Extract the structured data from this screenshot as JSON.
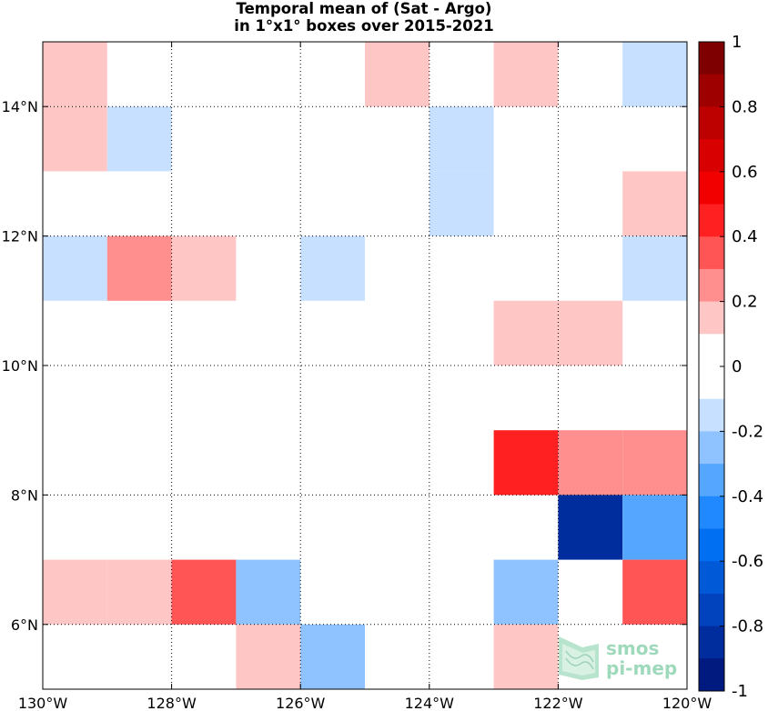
{
  "chart_data": {
    "type": "heatmap",
    "title": [
      "Temporal mean of (Sat - Argo)",
      "in 1°x1° boxes over 2015-2021"
    ],
    "xlim": [
      -130,
      -120
    ],
    "ylim": [
      5,
      15
    ],
    "x_ticks": [
      {
        "value": -130,
        "label": "130°W"
      },
      {
        "value": -128,
        "label": "128°W"
      },
      {
        "value": -126,
        "label": "126°W"
      },
      {
        "value": -124,
        "label": "124°W"
      },
      {
        "value": -122,
        "label": "122°W"
      },
      {
        "value": -120,
        "label": "120°W"
      }
    ],
    "y_ticks": [
      {
        "value": 6,
        "label": "6°N"
      },
      {
        "value": 8,
        "label": "8°N"
      },
      {
        "value": 10,
        "label": "10°N"
      },
      {
        "value": 12,
        "label": "12°N"
      },
      {
        "value": 14,
        "label": "14°N"
      }
    ],
    "grid": true,
    "cells": [
      {
        "lon": -130,
        "lat": 14,
        "value": 0.15
      },
      {
        "lon": -125,
        "lat": 14,
        "value": 0.15
      },
      {
        "lon": -123,
        "lat": 14,
        "value": 0.15
      },
      {
        "lon": -121,
        "lat": 14,
        "value": -0.15
      },
      {
        "lon": -130,
        "lat": 13,
        "value": 0.15
      },
      {
        "lon": -129,
        "lat": 13,
        "value": -0.15
      },
      {
        "lon": -124,
        "lat": 13,
        "value": -0.15
      },
      {
        "lon": -124,
        "lat": 12,
        "value": -0.15
      },
      {
        "lon": -121,
        "lat": 12,
        "value": 0.15
      },
      {
        "lon": -130,
        "lat": 11,
        "value": -0.15
      },
      {
        "lon": -129,
        "lat": 11,
        "value": 0.25
      },
      {
        "lon": -128,
        "lat": 11,
        "value": 0.15
      },
      {
        "lon": -126,
        "lat": 11,
        "value": -0.15
      },
      {
        "lon": -121,
        "lat": 11,
        "value": -0.15
      },
      {
        "lon": -123,
        "lat": 10,
        "value": 0.15
      },
      {
        "lon": -122,
        "lat": 10,
        "value": 0.15
      },
      {
        "lon": -123,
        "lat": 8,
        "value": 0.45
      },
      {
        "lon": -122,
        "lat": 8,
        "value": 0.25
      },
      {
        "lon": -121,
        "lat": 8,
        "value": 0.25
      },
      {
        "lon": -122,
        "lat": 7,
        "value": -0.85
      },
      {
        "lon": -121,
        "lat": 7,
        "value": -0.35
      },
      {
        "lon": -130,
        "lat": 6,
        "value": 0.15
      },
      {
        "lon": -129,
        "lat": 6,
        "value": 0.15
      },
      {
        "lon": -128,
        "lat": 6,
        "value": 0.35
      },
      {
        "lon": -127,
        "lat": 6,
        "value": -0.25
      },
      {
        "lon": -123,
        "lat": 6,
        "value": -0.25
      },
      {
        "lon": -121,
        "lat": 6,
        "value": 0.35
      },
      {
        "lon": -127,
        "lat": 5,
        "value": 0.15
      },
      {
        "lon": -126,
        "lat": 5,
        "value": -0.25
      },
      {
        "lon": -123,
        "lat": 5,
        "value": 0.15
      }
    ],
    "colorbar": {
      "min": -1,
      "max": 1,
      "ticks": [
        {
          "value": 1,
          "label": "1"
        },
        {
          "value": 0.8,
          "label": "0.8"
        },
        {
          "value": 0.6,
          "label": "0.6"
        },
        {
          "value": 0.4,
          "label": "0.4"
        },
        {
          "value": 0.2,
          "label": "0.2"
        },
        {
          "value": 0,
          "label": "0"
        },
        {
          "value": -0.2,
          "label": "-0.2"
        },
        {
          "value": -0.4,
          "label": "-0.4"
        },
        {
          "value": -0.6,
          "label": "-0.6"
        },
        {
          "value": -0.8,
          "label": "-0.8"
        },
        {
          "value": -1,
          "label": "-1"
        }
      ],
      "colors_top_to_bottom": [
        "#7f0000",
        "#9e0000",
        "#bd0000",
        "#d80000",
        "#f20000",
        "#ff2121",
        "#ff5555",
        "#ff8e8e",
        "#ffc6c6",
        "#ffffff",
        "#ffffff",
        "#c8e0ff",
        "#8ec3ff",
        "#55a6ff",
        "#2189ff",
        "#006ff2",
        "#005ad8",
        "#0043bd",
        "#002d9e",
        "#001a7f"
      ]
    }
  },
  "watermark": {
    "line1": "smos",
    "line2": "pi-mep"
  },
  "colors": {
    "grid": "#000000",
    "axis": "#000000",
    "watermark": "#9fd9bc"
  }
}
